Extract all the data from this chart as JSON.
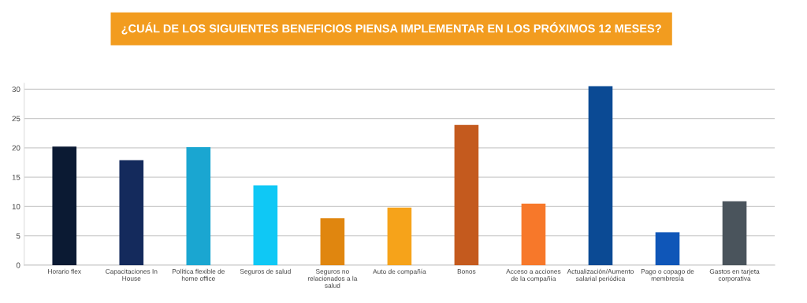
{
  "chart_data": {
    "type": "bar",
    "title": "¿CUÁL DE LOS SIGUIENTES BENEFICIOS PIENSA IMPLEMENTAR EN LOS PRÓXIMOS 12 MESES?",
    "categories": [
      "Horario flex",
      "Capacitaciones In\nHouse",
      "Política flexible de\nhome office",
      "Seguros de salud",
      "Seguros no\nrelacionados a la\nsalud",
      "Auto de compañía",
      "Bonos",
      "Acceso a acciones\nde la compañía",
      "Actualización/Aumento\nsalarial periódica",
      "Pago o copago de\nmembresía",
      "Gastos en tarjeta\ncorporativa"
    ],
    "values": [
      20.2,
      17.9,
      20.1,
      13.6,
      8.0,
      9.8,
      23.9,
      10.5,
      30.5,
      5.6,
      10.9
    ],
    "colors": [
      "#0b1a33",
      "#142a5c",
      "#1aa6d1",
      "#0fc8f5",
      "#e0860f",
      "#f6a31a",
      "#c45a1e",
      "#f7782a",
      "#0b4a94",
      "#0f56b8",
      "#4a545c"
    ],
    "ylim": [
      0,
      31
    ],
    "yticks": [
      0,
      5,
      10,
      15,
      20,
      25,
      30
    ],
    "grid": "y"
  }
}
